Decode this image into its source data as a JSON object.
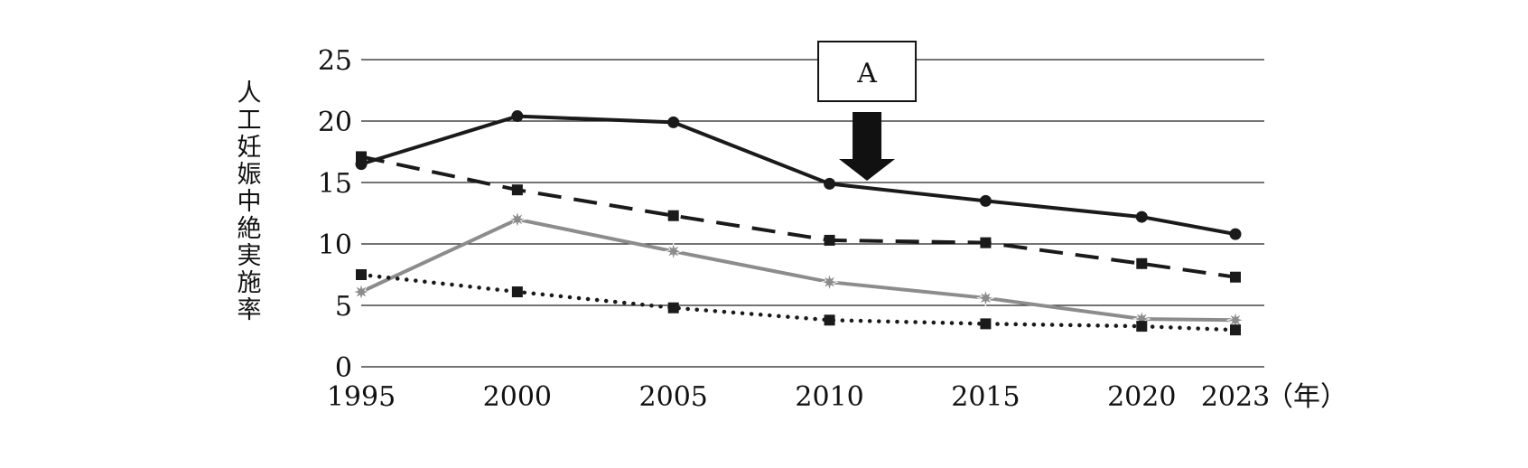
{
  "chart_data": {
    "type": "line",
    "title": "",
    "xlabel": "",
    "x_unit": "（年）",
    "ylabel": "人工妊娠中絶実施率",
    "x": [
      1995,
      2000,
      2005,
      2010,
      2015,
      2020,
      2023
    ],
    "ylim": [
      0,
      25
    ],
    "yticks": [
      0,
      5,
      10,
      15,
      20,
      25
    ],
    "grid": true,
    "series": [
      {
        "values": [
          16.5,
          20.4,
          19.9,
          14.9,
          13.5,
          12.2,
          10.8
        ],
        "style": "solid",
        "marker": "circle",
        "color": "#1a1a1a"
      },
      {
        "values": [
          17.1,
          14.4,
          12.3,
          10.3,
          10.1,
          8.4,
          7.3
        ],
        "style": "dashed",
        "marker": "square",
        "color": "#1a1a1a"
      },
      {
        "values": [
          6.1,
          12.0,
          9.4,
          6.9,
          5.6,
          3.9,
          3.8
        ],
        "style": "solid",
        "marker": "star",
        "color": "#8c8c8c"
      },
      {
        "values": [
          7.5,
          6.1,
          4.8,
          3.8,
          3.5,
          3.3,
          3.0
        ],
        "style": "dotted",
        "marker": "square",
        "color": "#1a1a1a"
      }
    ],
    "annotation": {
      "label": "A",
      "x": 2011.2,
      "arrow": "down"
    }
  }
}
